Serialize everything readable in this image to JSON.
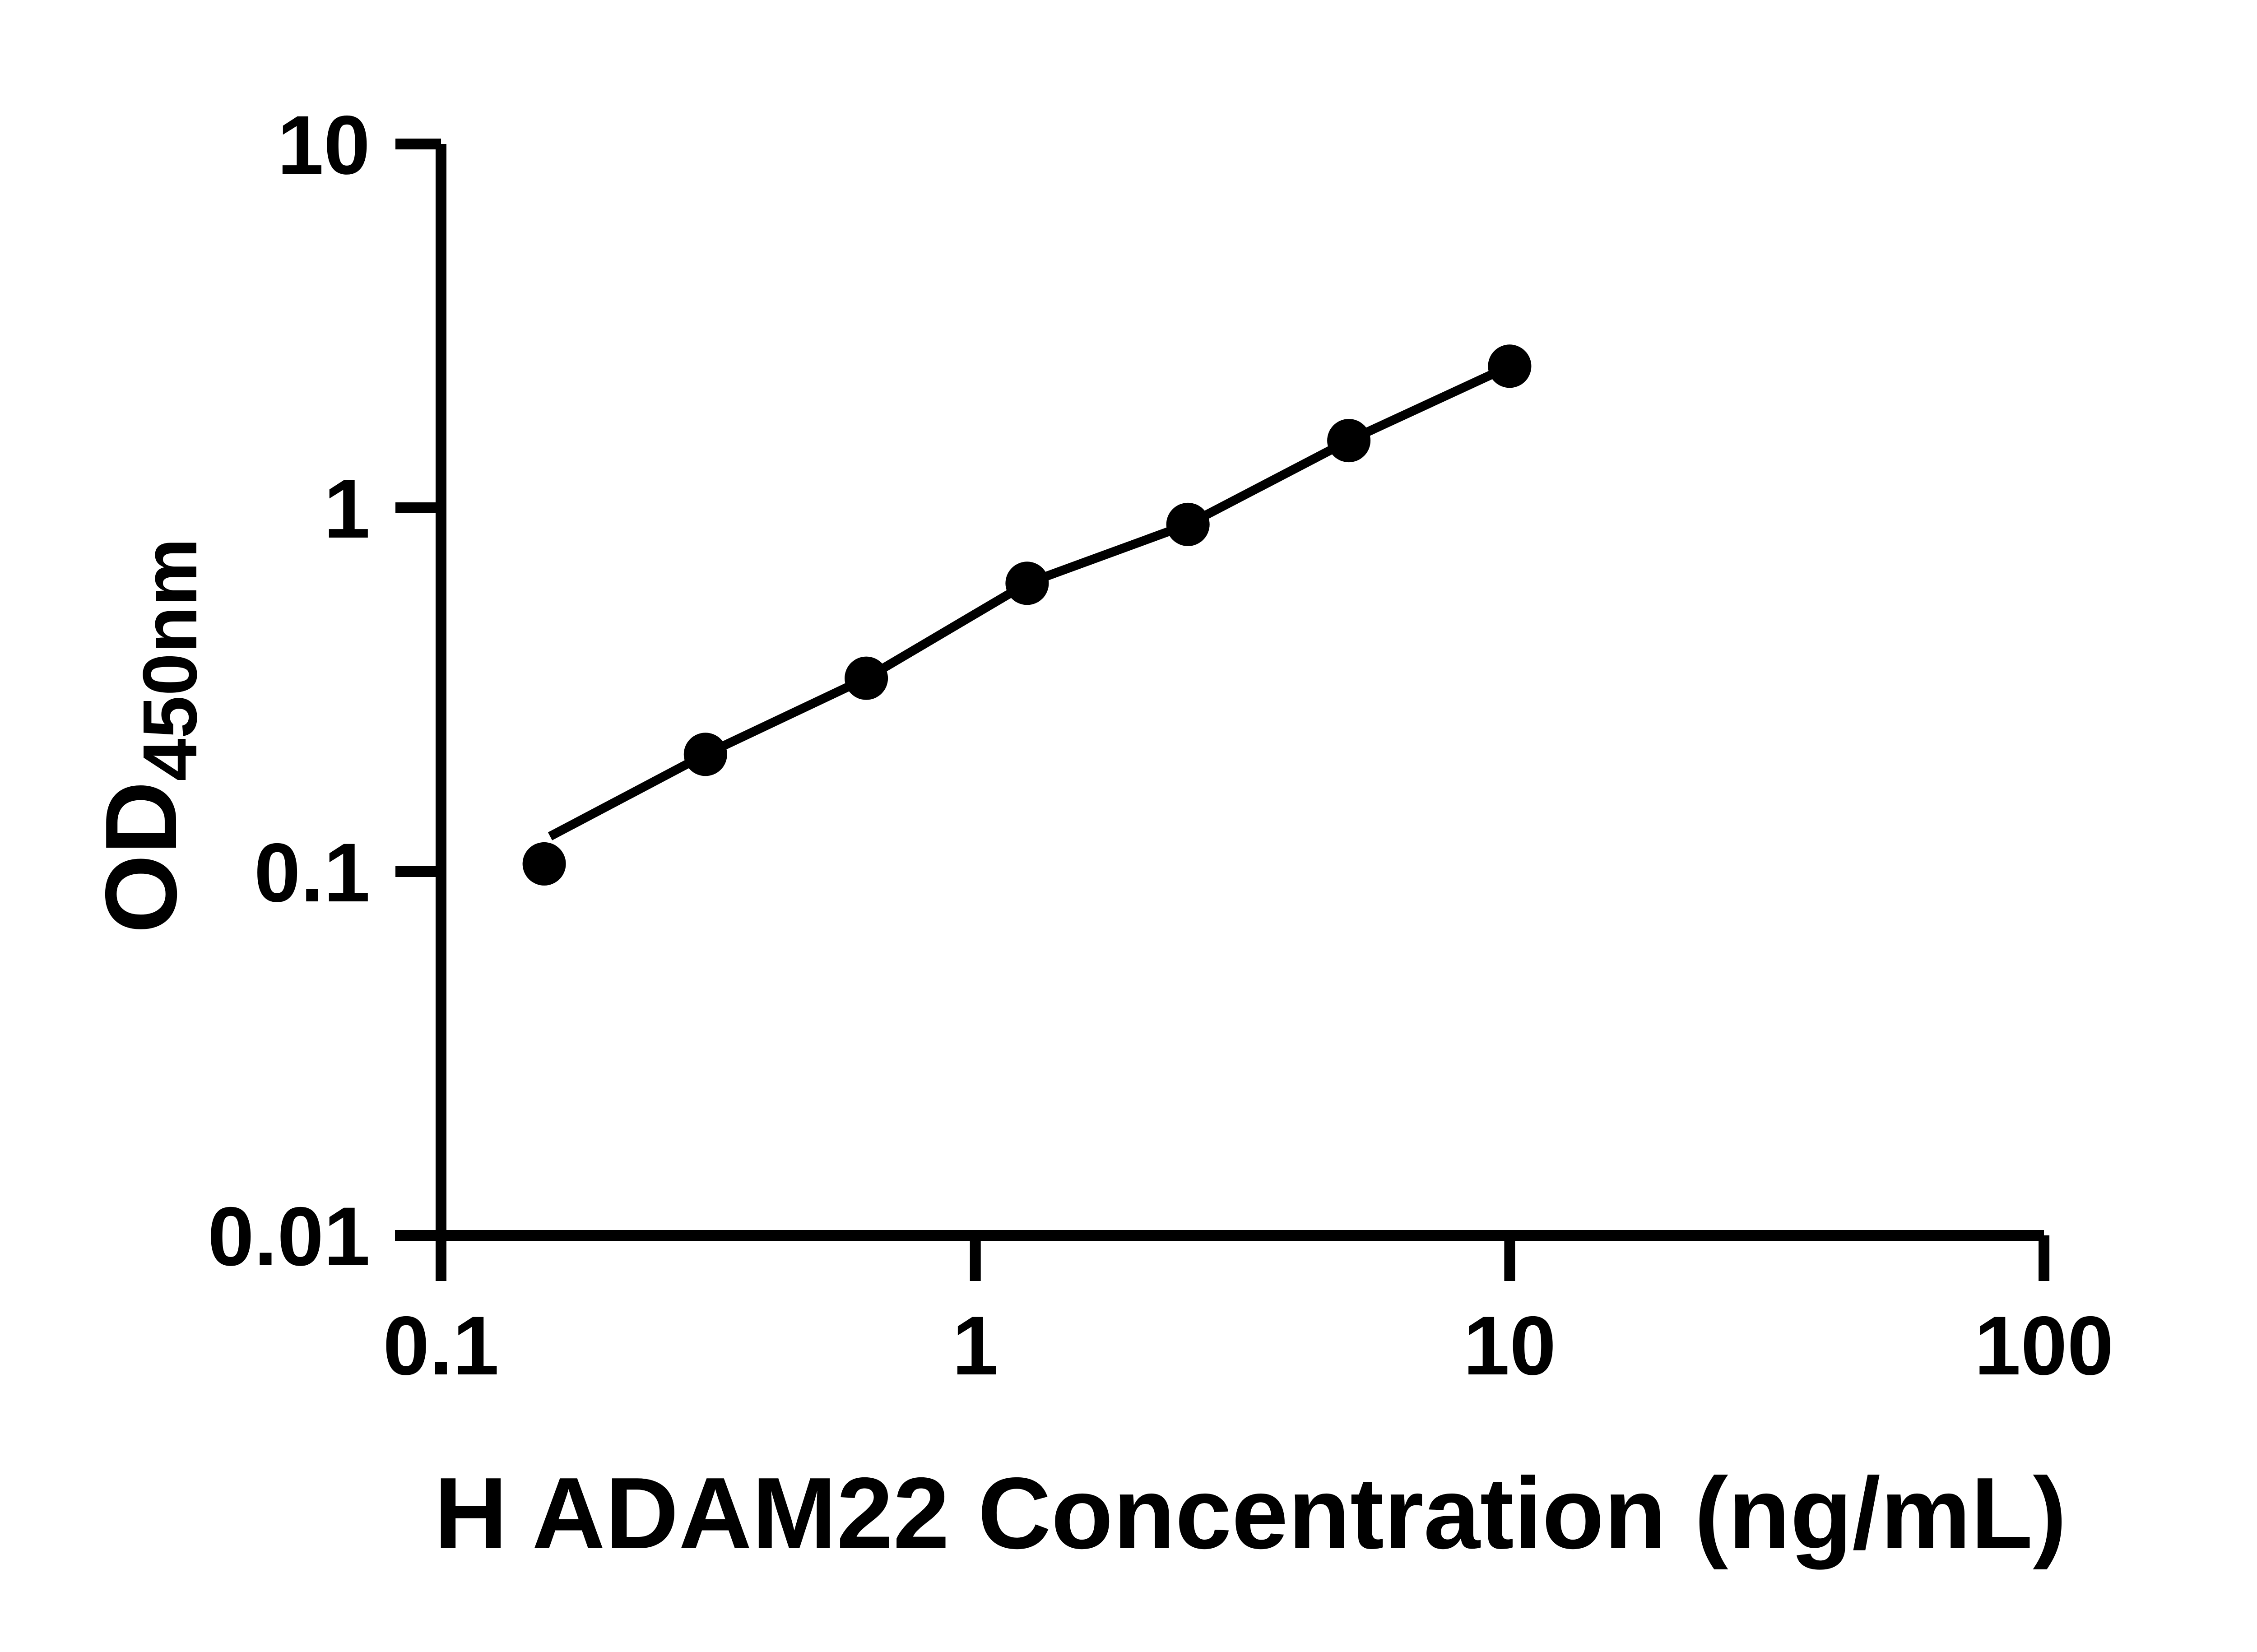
{
  "figure": {
    "background_color": "#ffffff",
    "axis_color": "#000000",
    "marker_color": "#000000",
    "line_color": "#000000"
  },
  "chart_data": {
    "type": "scatter",
    "title": "",
    "xlabel": "H ADAM22 Concentration (ng/mL)",
    "ylabel": "OD450nm",
    "ylabel_main": "OD",
    "ylabel_sub": "450nm",
    "x_scale": "log",
    "y_scale": "log",
    "xlim": [
      0.1,
      100
    ],
    "ylim": [
      0.01,
      10
    ],
    "x_tick_labels": [
      "0.1",
      "1",
      "10",
      "100"
    ],
    "y_tick_labels": [
      "10",
      "1",
      "0.1",
      "0.01"
    ],
    "x_tick_values": [
      0.1,
      1,
      10,
      100
    ],
    "y_tick_values": [
      10,
      1,
      0.1,
      0.01
    ],
    "grid": false,
    "legend": false,
    "x": [
      0.156,
      0.3125,
      0.625,
      1.25,
      2.5,
      5,
      10
    ],
    "y": [
      0.105,
      0.21,
      0.34,
      0.62,
      0.9,
      1.53,
      2.45
    ],
    "fit_line_points": [
      [
        0.16,
        0.125
      ],
      [
        0.3125,
        0.21
      ],
      [
        0.625,
        0.34
      ],
      [
        1.25,
        0.62
      ],
      [
        2.5,
        0.9
      ],
      [
        5,
        1.53
      ],
      [
        10,
        2.45
      ]
    ]
  }
}
